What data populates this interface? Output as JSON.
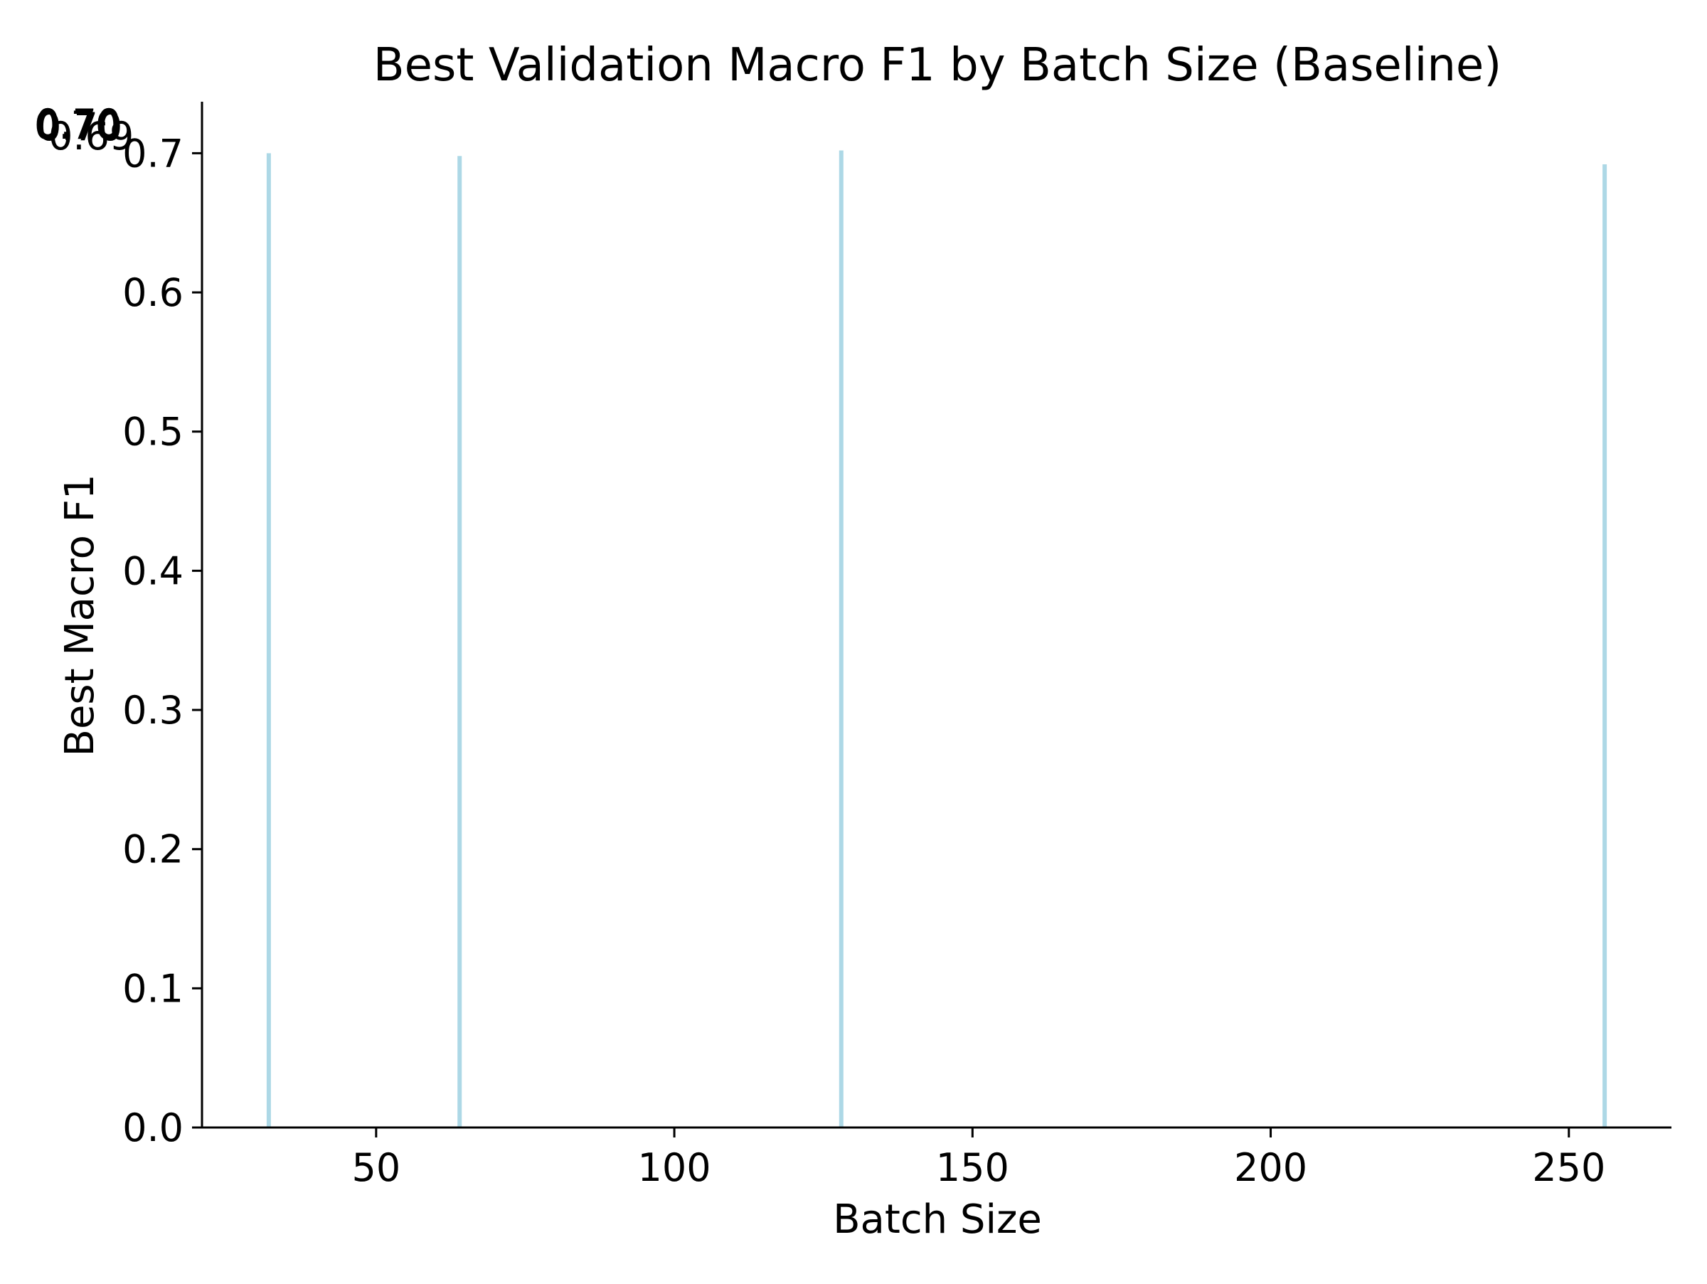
{
  "chart_data": {
    "type": "bar",
    "title": "Best Validation Macro F1 by Batch Size (Baseline)",
    "xlabel": "Batch Size",
    "ylabel": "Best Macro F1",
    "x": [
      32,
      64,
      128,
      256
    ],
    "values": [
      0.7,
      0.698,
      0.702,
      0.692
    ],
    "value_labels": [
      "0.70",
      "0.70",
      "0.70",
      "0.69"
    ],
    "xlim": [
      20.8,
      267.2
    ],
    "ylim": [
      0,
      0.737
    ],
    "xticks": [
      50,
      100,
      150,
      200,
      250
    ],
    "yticks": [
      0.0,
      0.1,
      0.2,
      0.3,
      0.4,
      0.5,
      0.6,
      0.7
    ],
    "xtick_labels": [
      "50",
      "100",
      "150",
      "200",
      "250"
    ],
    "ytick_labels": [
      "0.0",
      "0.1",
      "0.2",
      "0.3",
      "0.4",
      "0.5",
      "0.6",
      "0.7"
    ],
    "bar_color": "#add8e6",
    "grid": false,
    "legend": "none"
  }
}
